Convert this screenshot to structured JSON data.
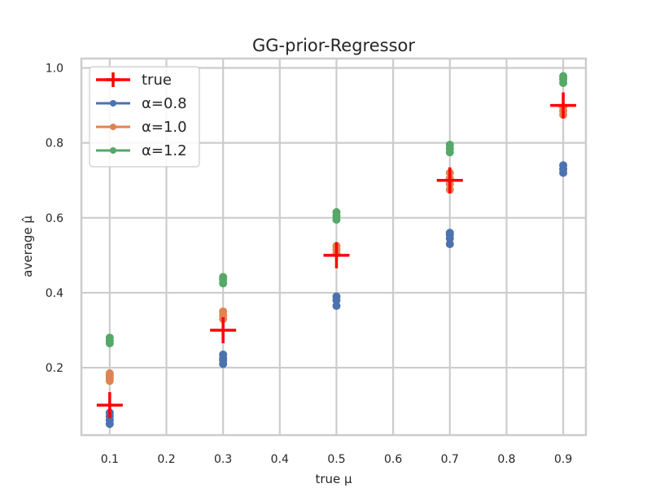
{
  "chart_data": {
    "type": "scatter",
    "title": "GG-prior-Regressor",
    "xlabel": "true μ",
    "ylabel": "average μ̂",
    "xlim": [
      0.05,
      0.94
    ],
    "ylim": [
      0.02,
      1.025
    ],
    "xticks": [
      "0.1",
      "0.2",
      "0.3",
      "0.4",
      "0.5",
      "0.6",
      "0.7",
      "0.8",
      "0.9"
    ],
    "yticks": [
      "0.2",
      "0.4",
      "0.6",
      "0.8",
      "1.0"
    ],
    "grid": true,
    "legend_position": "top-left",
    "series": [
      {
        "name": "true",
        "marker": "plus",
        "color": "#ff0000",
        "points": [
          [
            0.1,
            0.1
          ],
          [
            0.3,
            0.3
          ],
          [
            0.5,
            0.5
          ],
          [
            0.7,
            0.7
          ],
          [
            0.9,
            0.9
          ]
        ]
      },
      {
        "name": "α=0.8",
        "marker": "circle",
        "color": "#4c72b0",
        "points": [
          [
            0.1,
            0.05
          ],
          [
            0.1,
            0.06
          ],
          [
            0.1,
            0.07
          ],
          [
            0.1,
            0.08
          ],
          [
            0.3,
            0.21
          ],
          [
            0.3,
            0.22
          ],
          [
            0.3,
            0.225
          ],
          [
            0.3,
            0.235
          ],
          [
            0.5,
            0.365
          ],
          [
            0.5,
            0.38
          ],
          [
            0.5,
            0.39
          ],
          [
            0.7,
            0.53
          ],
          [
            0.7,
            0.545
          ],
          [
            0.7,
            0.555
          ],
          [
            0.7,
            0.56
          ],
          [
            0.9,
            0.72
          ],
          [
            0.9,
            0.73
          ],
          [
            0.9,
            0.74
          ]
        ]
      },
      {
        "name": "α=1.0",
        "marker": "circle",
        "color": "#dd8452",
        "points": [
          [
            0.1,
            0.165
          ],
          [
            0.1,
            0.172
          ],
          [
            0.1,
            0.18
          ],
          [
            0.1,
            0.185
          ],
          [
            0.3,
            0.33
          ],
          [
            0.3,
            0.34
          ],
          [
            0.3,
            0.35
          ],
          [
            0.5,
            0.505
          ],
          [
            0.5,
            0.515
          ],
          [
            0.5,
            0.525
          ],
          [
            0.7,
            0.675
          ],
          [
            0.7,
            0.69
          ],
          [
            0.7,
            0.705
          ],
          [
            0.7,
            0.72
          ],
          [
            0.9,
            0.875
          ],
          [
            0.9,
            0.885
          ],
          [
            0.9,
            0.895
          ]
        ]
      },
      {
        "name": "α=1.2",
        "marker": "circle",
        "color": "#55a868",
        "points": [
          [
            0.1,
            0.265
          ],
          [
            0.1,
            0.272
          ],
          [
            0.1,
            0.28
          ],
          [
            0.3,
            0.425
          ],
          [
            0.3,
            0.435
          ],
          [
            0.3,
            0.442
          ],
          [
            0.5,
            0.595
          ],
          [
            0.5,
            0.605
          ],
          [
            0.5,
            0.615
          ],
          [
            0.7,
            0.775
          ],
          [
            0.7,
            0.785
          ],
          [
            0.7,
            0.795
          ],
          [
            0.9,
            0.96
          ],
          [
            0.9,
            0.97
          ],
          [
            0.9,
            0.978
          ]
        ]
      }
    ]
  }
}
